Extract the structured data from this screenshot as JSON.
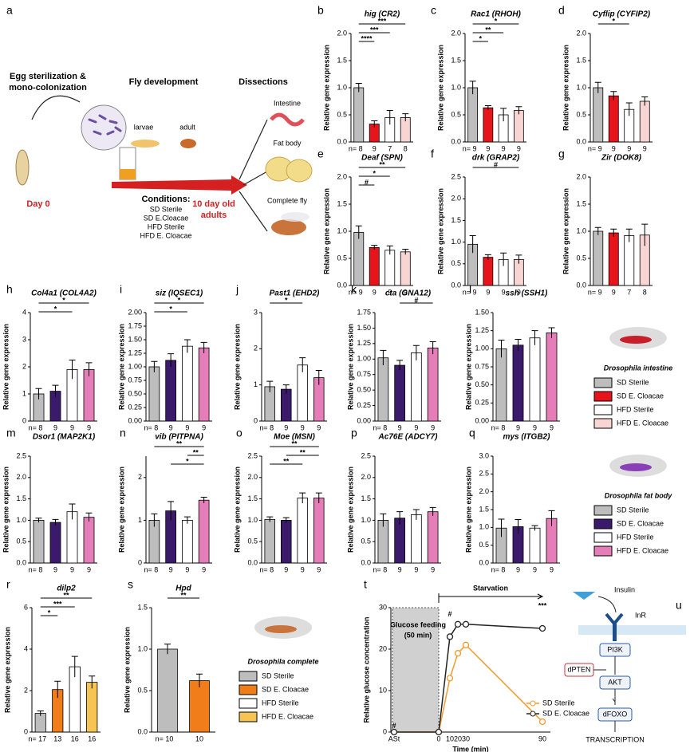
{
  "schematic": {
    "panel": "a",
    "step1": "Egg sterilization &",
    "step1b": "mono-colonization",
    "step2": "Fly development",
    "step3": "Dissections",
    "larvae": "larvae",
    "adult": "adult",
    "intestine": "Intestine",
    "fat_body": "Fat body",
    "complete": "Complete fly",
    "day0": "Day 0",
    "conditions": "Conditions:",
    "conds": [
      "SD Sterile",
      "SD E.Cloacae",
      "HFD Sterile",
      "HFD E. Cloacae"
    ],
    "end": "10 day old",
    "end2": "adults"
  },
  "chart_data": [
    {
      "type": "bar",
      "panel": "b",
      "title": "hig (CR2)",
      "ylabel": "Relative gene expression",
      "values": [
        1.0,
        0.33,
        0.45,
        0.45
      ],
      "errors": [
        0.08,
        0.06,
        0.13,
        0.07
      ],
      "colors": [
        "#bdbdbd",
        "#e8141b",
        "#ffffff",
        "#f8d5d3"
      ],
      "n": [
        "n= 8",
        "9",
        "7",
        "8"
      ],
      "ylim": [
        0,
        2
      ],
      "yticks": [
        {
          "value": 0,
          "label": "0.0"
        },
        0.5,
        {
          "value": 1,
          "label": "1.0"
        },
        1.5,
        {
          "value": 2,
          "label": "2.0"
        }
      ],
      "comparisons": [
        {
          "label": "***",
          "groups": [
            0,
            3
          ]
        },
        {
          "label": "***",
          "groups": [
            0,
            2
          ]
        },
        {
          "label": "****",
          "groups": [
            0,
            1
          ]
        }
      ]
    },
    {
      "type": "bar",
      "panel": "c",
      "title": "Rac1 (RHOH)",
      "ylabel": "Relative gene expression",
      "values": [
        1.0,
        0.63,
        0.5,
        0.58
      ],
      "errors": [
        0.12,
        0.04,
        0.12,
        0.07
      ],
      "colors": [
        "#bdbdbd",
        "#e8141b",
        "#ffffff",
        "#f8d5d3"
      ],
      "n": [
        "n= 9",
        "9",
        "9",
        "9"
      ],
      "ylim": [
        0,
        2
      ],
      "yticks": [
        {
          "value": 0,
          "label": "0.0"
        },
        0.5,
        {
          "value": 1,
          "label": "1.0"
        },
        1.5,
        {
          "value": 2,
          "label": "2.0"
        }
      ],
      "comparisons": [
        {
          "label": "*",
          "groups": [
            0,
            3
          ]
        },
        {
          "label": "**",
          "groups": [
            0,
            2
          ]
        },
        {
          "label": "*",
          "groups": [
            0,
            1
          ]
        }
      ]
    },
    {
      "type": "bar",
      "panel": "d",
      "title": "Cyflip (CYFIP2)",
      "ylabel": "Relative gene expression",
      "values": [
        1.0,
        0.85,
        0.6,
        0.75
      ],
      "errors": [
        0.1,
        0.08,
        0.12,
        0.08
      ],
      "colors": [
        "#bdbdbd",
        "#e8141b",
        "#ffffff",
        "#f8d5d3"
      ],
      "n": [
        "n= 9",
        "9",
        "9",
        "9"
      ],
      "ylim": [
        0,
        2
      ],
      "yticks": [
        {
          "value": 0,
          "label": "0.0"
        },
        0.5,
        {
          "value": 1,
          "label": "1.0"
        },
        1.5,
        {
          "value": 2,
          "label": "2.0"
        }
      ],
      "comparisons": [
        {
          "label": "*",
          "groups": [
            0,
            2
          ]
        }
      ]
    },
    {
      "type": "bar",
      "panel": "e",
      "title": "Deaf (SPN)",
      "ylabel": "Relative gene expression",
      "values": [
        0.98,
        0.7,
        0.65,
        0.62
      ],
      "errors": [
        0.12,
        0.04,
        0.08,
        0.05
      ],
      "colors": [
        "#bdbdbd",
        "#e8141b",
        "#ffffff",
        "#f8d5d3"
      ],
      "n": [
        "n= 9",
        "9",
        "9",
        "9"
      ],
      "ylim": [
        0,
        2
      ],
      "yticks": [
        {
          "value": 0,
          "label": "0.0"
        },
        0.5,
        {
          "value": 1,
          "label": "1.0"
        },
        1.5,
        {
          "value": 2,
          "label": "2.0"
        }
      ],
      "comparisons": [
        {
          "label": "**",
          "groups": [
            0,
            3
          ]
        },
        {
          "label": "*",
          "groups": [
            0,
            2
          ]
        },
        {
          "label": "#",
          "groups": [
            0,
            1
          ]
        }
      ]
    },
    {
      "type": "bar",
      "panel": "f",
      "title": "drk (GRAP2)",
      "ylabel": "Relative gene expression",
      "values": [
        0.95,
        0.65,
        0.6,
        0.6
      ],
      "errors": [
        0.2,
        0.06,
        0.15,
        0.1
      ],
      "colors": [
        "#bdbdbd",
        "#e8141b",
        "#ffffff",
        "#f8d5d3"
      ],
      "n": [
        "n= 9",
        "9",
        "9",
        "9"
      ],
      "ylim": [
        0,
        2.5
      ],
      "yticks": [
        {
          "value": 0,
          "label": "0.0"
        },
        0.5,
        {
          "value": 1,
          "label": "1.0"
        },
        1.5,
        {
          "value": 2,
          "label": "2.0"
        },
        2.5
      ],
      "comparisons": [
        {
          "label": "#",
          "groups": [
            0,
            3
          ]
        }
      ]
    },
    {
      "type": "bar",
      "panel": "g",
      "title": "Zir (DOK8)",
      "ylabel": "Relative gene expression",
      "values": [
        1.0,
        0.97,
        0.92,
        0.93
      ],
      "errors": [
        0.07,
        0.07,
        0.12,
        0.2
      ],
      "colors": [
        "#bdbdbd",
        "#e8141b",
        "#ffffff",
        "#f8d5d3"
      ],
      "n": [
        "n= 9",
        "9",
        "7",
        "8"
      ],
      "ylim": [
        0,
        2
      ],
      "yticks": [
        {
          "value": 0,
          "label": "0.0"
        },
        0.5,
        {
          "value": 1,
          "label": "1.0"
        },
        1.5,
        {
          "value": 2,
          "label": "2.0"
        }
      ],
      "comparisons": []
    },
    {
      "type": "bar",
      "panel": "h",
      "title": "Col4a1 (COL4A2)",
      "ylabel": "Relative gene expression",
      "values": [
        1.0,
        1.1,
        1.9,
        1.9
      ],
      "errors": [
        0.2,
        0.22,
        0.35,
        0.25
      ],
      "colors": [
        "#bdbdbd",
        "#3b1a6b",
        "#ffffff",
        "#e57db8"
      ],
      "n": [
        "n= 8",
        "9",
        "9",
        "9"
      ],
      "ylim": [
        0,
        4
      ],
      "yticks": [
        0,
        1,
        2,
        3,
        4
      ],
      "comparisons": [
        {
          "label": "*",
          "groups": [
            0,
            3
          ]
        },
        {
          "label": "*",
          "groups": [
            0,
            2
          ]
        }
      ]
    },
    {
      "type": "bar",
      "panel": "i",
      "title": "siz (IQSEC1)",
      "ylabel": "Relative gene expression",
      "values": [
        1.0,
        1.12,
        1.38,
        1.35
      ],
      "errors": [
        0.1,
        0.12,
        0.12,
        0.1
      ],
      "colors": [
        "#bdbdbd",
        "#3b1a6b",
        "#ffffff",
        "#e57db8"
      ],
      "n": [
        "n= 8",
        "9",
        "9",
        "9"
      ],
      "ylim": [
        0,
        2
      ],
      "yticks": [
        {
          "value": 0,
          "label": "0.00"
        },
        0.25,
        {
          "value": 0.5,
          "label": "0.50"
        },
        0.75,
        {
          "value": 1,
          "label": "1.00"
        },
        1.25,
        {
          "value": 1.5,
          "label": "1.50"
        },
        1.75,
        {
          "value": 2,
          "label": "2.00"
        }
      ],
      "comparisons": [
        {
          "label": "*",
          "groups": [
            0,
            3
          ]
        },
        {
          "label": "*",
          "groups": [
            0,
            2
          ]
        }
      ]
    },
    {
      "type": "bar",
      "panel": "j",
      "title": "Past1 (EHD2)",
      "ylabel": "Relative gene expression",
      "values": [
        0.95,
        0.88,
        1.55,
        1.2
      ],
      "errors": [
        0.15,
        0.12,
        0.2,
        0.2
      ],
      "colors": [
        "#bdbdbd",
        "#3b1a6b",
        "#ffffff",
        "#e57db8"
      ],
      "n": [
        "n= 8",
        "9",
        "9",
        "9"
      ],
      "ylim": [
        0,
        3
      ],
      "yticks": [
        0,
        1,
        2,
        3
      ],
      "comparisons": [
        {
          "label": "*",
          "groups": [
            0,
            2
          ]
        }
      ]
    },
    {
      "type": "bar",
      "panel": "k",
      "title": "cta (GNA12)",
      "ylabel": "Relative gene expression",
      "values": [
        1.02,
        0.9,
        1.1,
        1.18
      ],
      "errors": [
        0.12,
        0.08,
        0.12,
        0.1
      ],
      "colors": [
        "#bdbdbd",
        "#3b1a6b",
        "#ffffff",
        "#e57db8"
      ],
      "n": [
        "n= 8",
        "9",
        "9",
        "9"
      ],
      "ylim": [
        0,
        1.75
      ],
      "yticks": [
        {
          "value": 0,
          "label": "0.00"
        },
        0.25,
        {
          "value": 0.5,
          "label": "0.50"
        },
        0.75,
        {
          "value": 1,
          "label": "1.00"
        },
        1.25,
        {
          "value": 1.5,
          "label": "1.50"
        },
        1.75
      ],
      "comparisons": [
        {
          "label": "#",
          "groups": [
            1,
            3
          ]
        }
      ]
    },
    {
      "type": "bar",
      "panel": "l",
      "title": "ssh (SSH1)",
      "ylabel": "Relative gene expression",
      "values": [
        1.0,
        1.05,
        1.15,
        1.22
      ],
      "errors": [
        0.12,
        0.08,
        0.1,
        0.07
      ],
      "colors": [
        "#bdbdbd",
        "#3b1a6b",
        "#ffffff",
        "#e57db8"
      ],
      "n": [
        "n= 8",
        "9",
        "9",
        "9"
      ],
      "ylim": [
        0,
        1.5
      ],
      "yticks": [
        {
          "value": 0,
          "label": "0.00"
        },
        0.25,
        {
          "value": 0.5,
          "label": "0.50"
        },
        0.75,
        {
          "value": 1,
          "label": "1.00"
        },
        1.25,
        {
          "value": 1.5,
          "label": "1.50"
        }
      ],
      "comparisons": []
    },
    {
      "type": "bar",
      "panel": "m",
      "title": "Dsor1 (MAP2K1)",
      "ylabel": "Relative gene expression",
      "values": [
        1.0,
        0.95,
        1.2,
        1.07
      ],
      "errors": [
        0.05,
        0.07,
        0.18,
        0.1
      ],
      "colors": [
        "#bdbdbd",
        "#3b1a6b",
        "#ffffff",
        "#e57db8"
      ],
      "n": [
        "n= 8",
        "9",
        "9",
        "9"
      ],
      "ylim": [
        0,
        2.5
      ],
      "yticks": [
        {
          "value": 0,
          "label": "0.0"
        },
        0.5,
        {
          "value": 1,
          "label": "1.0"
        },
        1.5,
        {
          "value": 2,
          "label": "2.0"
        },
        2.5
      ],
      "comparisons": []
    },
    {
      "type": "bar",
      "panel": "n",
      "title": "vib (PITPNA)",
      "ylabel": "Relative gene expression",
      "values": [
        1.0,
        1.22,
        1.0,
        1.47
      ],
      "errors": [
        0.15,
        0.22,
        0.08,
        0.07
      ],
      "colors": [
        "#bdbdbd",
        "#3b1a6b",
        "#ffffff",
        "#e57db8"
      ],
      "n": [
        "n= 8",
        "9",
        "9",
        "9"
      ],
      "ylim": [
        0,
        2.5
      ],
      "yticks": [
        0,
        1,
        2
      ],
      "comparisons": [
        {
          "label": "**",
          "groups": [
            0,
            3
          ]
        },
        {
          "label": "**",
          "groups": [
            2,
            3
          ]
        },
        {
          "label": "*",
          "groups": [
            1,
            3
          ]
        }
      ]
    },
    {
      "type": "bar",
      "panel": "o",
      "title": "Moe (MSN)",
      "ylabel": "Relative gene expression",
      "values": [
        1.02,
        1.0,
        1.52,
        1.52
      ],
      "errors": [
        0.06,
        0.06,
        0.12,
        0.12
      ],
      "colors": [
        "#bdbdbd",
        "#3b1a6b",
        "#ffffff",
        "#e57db8"
      ],
      "n": [
        "n= 8",
        "9",
        "9",
        "9"
      ],
      "ylim": [
        0,
        2.5
      ],
      "yticks": [
        {
          "value": 0,
          "label": "0.0"
        },
        0.5,
        {
          "value": 1,
          "label": "1.0"
        },
        1.5,
        {
          "value": 2,
          "label": "2.0"
        },
        2.5
      ],
      "comparisons": [
        {
          "label": "**",
          "groups": [
            0,
            3
          ]
        },
        {
          "label": "**",
          "groups": [
            1,
            3
          ]
        },
        {
          "label": "**",
          "groups": [
            0,
            2
          ]
        }
      ]
    },
    {
      "type": "bar",
      "panel": "p",
      "title": "Ac76E (ADCY7)",
      "ylabel": "Relative gene expression",
      "values": [
        1.0,
        1.05,
        1.13,
        1.2
      ],
      "errors": [
        0.15,
        0.15,
        0.12,
        0.1
      ],
      "colors": [
        "#bdbdbd",
        "#3b1a6b",
        "#ffffff",
        "#e57db8"
      ],
      "n": [
        "n= 8",
        "9",
        "9",
        "9"
      ],
      "ylim": [
        0,
        2.5
      ],
      "yticks": [
        {
          "value": 0,
          "label": "0.0"
        },
        0.5,
        {
          "value": 1,
          "label": "1.0"
        },
        1.5,
        {
          "value": 2,
          "label": "2.0"
        },
        2.5
      ],
      "comparisons": []
    },
    {
      "type": "bar",
      "panel": "q",
      "title": "mys (ITGB2)",
      "ylabel": "Relative gene expression",
      "values": [
        0.98,
        1.02,
        0.98,
        1.25
      ],
      "errors": [
        0.25,
        0.2,
        0.07,
        0.22
      ],
      "colors": [
        "#bdbdbd",
        "#3b1a6b",
        "#ffffff",
        "#e57db8"
      ],
      "n": [
        "n= 8",
        "9",
        "9",
        "9"
      ],
      "ylim": [
        0,
        3
      ],
      "yticks": [
        {
          "value": 0,
          "label": "0.0"
        },
        0.5,
        {
          "value": 1,
          "label": "1.0"
        },
        1.5,
        {
          "value": 2,
          "label": "2.0"
        },
        2.5,
        {
          "value": 3,
          "label": "3.0"
        }
      ],
      "comparisons": []
    },
    {
      "type": "bar",
      "panel": "r",
      "title": "dilp2",
      "ylabel": "Relative gene expression",
      "values": [
        0.9,
        2.05,
        3.15,
        2.4
      ],
      "errors": [
        0.12,
        0.4,
        0.5,
        0.3
      ],
      "colors": [
        "#bdbdbd",
        "#f07d1a",
        "#ffffff",
        "#f6c453"
      ],
      "n": [
        "n= 17",
        "13",
        "16",
        "16"
      ],
      "ylim": [
        0,
        6
      ],
      "yticks": [
        0,
        2,
        4,
        6
      ],
      "comparisons": [
        {
          "label": "**",
          "groups": [
            0,
            3
          ]
        },
        {
          "label": "***",
          "groups": [
            0,
            2
          ]
        },
        {
          "label": "*",
          "groups": [
            0,
            1
          ]
        }
      ]
    },
    {
      "type": "bar",
      "panel": "s",
      "title": "Hpd",
      "ylabel": "Relative gene expression",
      "values": [
        1.0,
        0.62
      ],
      "errors": [
        0.06,
        0.08
      ],
      "colors": [
        "#bdbdbd",
        "#f07d1a"
      ],
      "n": [
        "n= 10",
        "10"
      ],
      "ylim": [
        0,
        1.5
      ],
      "yticks": [
        {
          "value": 0,
          "label": "0.0"
        },
        0.5,
        {
          "value": 1,
          "label": "1.0"
        },
        1.5
      ],
      "comparisons": [
        {
          "label": "**",
          "groups": [
            0,
            1
          ]
        }
      ]
    },
    {
      "type": "line",
      "panel": "t",
      "ylabel": "Relative glucose concentration",
      "xlabel": "Time (min)",
      "categories": [
        "ASt",
        "0",
        "10",
        "20",
        "30",
        "90"
      ],
      "series": [
        {
          "name": "SD Sterile",
          "color": "#f29a2e",
          "values": [
            0,
            0,
            13,
            19,
            21,
            2.5
          ]
        },
        {
          "name": "SD E. Cloacae",
          "color": "#222222",
          "values": [
            0,
            0,
            23,
            26,
            26,
            25
          ]
        }
      ],
      "ylim": [
        0,
        30
      ],
      "yticks": [
        0,
        10,
        20,
        30
      ],
      "legend": "lower right",
      "shaded_label": "Glucose feeding",
      "shaded_label2": "(50 min)",
      "arrow_label": "Starvation",
      "marks": [
        "#",
        "#",
        "***"
      ]
    }
  ],
  "legends": [
    {
      "title": "Drosophila intestine",
      "items": [
        "SD Sterile",
        "SD E. Cloacae",
        "HFD Sterile",
        "HFD E. Cloacae"
      ],
      "colors": [
        "#bdbdbd",
        "#e8141b",
        "#ffffff",
        "#f8d5d3"
      ]
    },
    {
      "title": "Drosophila fat body",
      "items": [
        "SD Sterile",
        "SD E. Cloacae",
        "HFD Sterile",
        "HFD E. Cloacae"
      ],
      "colors": [
        "#bdbdbd",
        "#3b1a6b",
        "#ffffff",
        "#e57db8"
      ]
    },
    {
      "title": "Drosophila complete",
      "items": [
        "SD Sterile",
        "SD E. Cloacae",
        "HFD Sterile",
        "HFD E. Cloacae"
      ],
      "colors": [
        "#bdbdbd",
        "#f07d1a",
        "#ffffff",
        "#f6c453"
      ]
    }
  ],
  "pathway": {
    "panel": "u",
    "insulin": "Insulin",
    "receptor": "InR",
    "pi3k": "PI3K",
    "pten": "dPTEN",
    "akt": "AKT",
    "foxo": "dFOXO",
    "output": "TRANSCRIPTION"
  }
}
